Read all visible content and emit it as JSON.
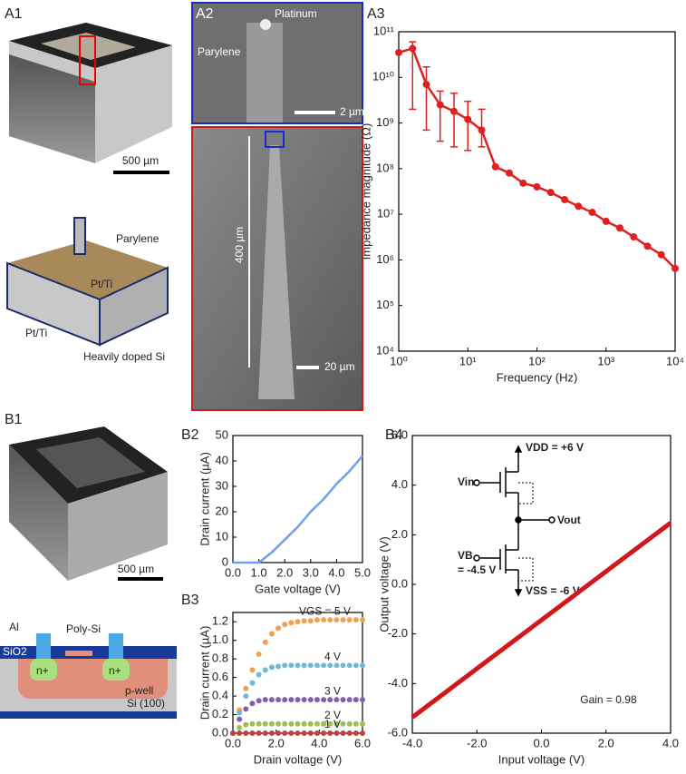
{
  "panels": {
    "a1": "A1",
    "a2": "A2",
    "a3": "A3",
    "b1": "B1",
    "b2": "B2",
    "b3": "B3",
    "b4": "B4"
  },
  "a1": {
    "scale_bar": "500 µm",
    "schematic": {
      "parylene": "Parylene",
      "pt_ti_1": "Pt/Ti",
      "pt_ti_2": "Pt/Ti",
      "si": "Heavily doped Si"
    }
  },
  "a2": {
    "platinum": "Platinum",
    "parylene": "Parylene",
    "scale_top": "2 µm",
    "length": "400 µm",
    "scale_bottom": "20 µm"
  },
  "b1": {
    "scale_bar": "500 µm",
    "schematic": {
      "al": "Al",
      "poly": "Poly-Si",
      "sio2": "SiO2",
      "n1": "n+",
      "n2": "n+",
      "pwell": "p-well",
      "si": "Si (100)"
    }
  },
  "chart_data": [
    {
      "type": "line",
      "markers": true,
      "log_x": true,
      "log_y": true,
      "x": [
        1,
        1.585,
        2.512,
        3.981,
        6.31,
        10,
        15.85,
        25.12,
        39.81,
        63.1,
        100,
        158.5,
        251.2,
        398.1,
        631,
        1000,
        1585,
        2512,
        3981,
        6310,
        10000
      ],
      "series": [
        {
          "color": "#e02020",
          "values": [
            35000000000.0,
            43000000000.0,
            7000000000.0,
            2500000000.0,
            1800000000.0,
            1200000000.0,
            700000000.0,
            110000000.0,
            80000000.0,
            48000000.0,
            40000000.0,
            30000000.0,
            21000000.0,
            15000000.0,
            11000000.0,
            7000000.0,
            5000000.0,
            3200000.0,
            2000000.0,
            1300000.0,
            650000.0
          ],
          "error_low": [
            null,
            2000000000.0,
            700000000.0,
            400000000.0,
            300000000.0,
            250000000.0,
            300000000.0,
            null,
            null,
            null,
            null,
            null,
            null,
            null,
            null,
            null,
            null,
            null,
            null,
            null,
            null
          ],
          "error_high": [
            null,
            60000000000.0,
            17000000000.0,
            5000000000.0,
            4500000000.0,
            3000000000.0,
            2000000000.0,
            null,
            null,
            null,
            null,
            null,
            null,
            null,
            null,
            null,
            null,
            null,
            null,
            null,
            null
          ]
        }
      ],
      "xlim": [
        1,
        10000
      ],
      "ylim": [
        10000,
        100000000000
      ],
      "xticks": [
        {
          "value": 1,
          "label": "10⁰"
        },
        {
          "value": 10,
          "label": "10¹"
        },
        {
          "value": 100,
          "label": "10²"
        },
        {
          "value": 1000,
          "label": "10³"
        },
        {
          "value": 10000,
          "label": "10⁴"
        }
      ],
      "yticks": [
        {
          "value": 10000,
          "label": "10⁴"
        },
        {
          "value": 100000,
          "label": "10⁵"
        },
        {
          "value": 1000000,
          "label": "10⁶"
        },
        {
          "value": 10000000,
          "label": "10⁷"
        },
        {
          "value": 100000000,
          "label": "10⁸"
        },
        {
          "value": 1000000000,
          "label": "10⁹"
        },
        {
          "value": 10000000000,
          "label": "10¹⁰"
        },
        {
          "value": 100000000000,
          "label": "10¹¹"
        }
      ],
      "xlabel": "Frequency (Hz)",
      "ylabel": "Impedance magnitude (Ω)"
    },
    {
      "type": "line",
      "x": [
        0,
        0.5,
        1,
        1.5,
        2,
        2.5,
        3,
        3.5,
        4,
        4.5,
        5
      ],
      "series": [
        {
          "color": "#6f9ff0",
          "values": [
            0,
            0,
            0,
            4,
            9,
            14,
            20,
            25,
            31,
            36,
            42
          ]
        }
      ],
      "xlim": [
        0,
        5
      ],
      "ylim": [
        0,
        50
      ],
      "xticks": [
        {
          "value": 0,
          "label": "0.0"
        },
        {
          "value": 1,
          "label": "1.0"
        },
        {
          "value": 2,
          "label": "2.0"
        },
        {
          "value": 3,
          "label": "3.0"
        },
        {
          "value": 4,
          "label": "4.0"
        },
        {
          "value": 5,
          "label": "5.0"
        }
      ],
      "yticks": [
        0,
        10,
        20,
        30,
        40,
        50
      ],
      "xlabel": "Gate voltage (V)",
      "ylabel": "Drain current (µA)"
    },
    {
      "type": "scatter",
      "x": [
        0,
        0.3,
        0.6,
        0.9,
        1.2,
        1.5,
        1.8,
        2.1,
        2.4,
        2.7,
        3,
        3.3,
        3.6,
        3.9,
        4.2,
        4.5,
        4.8,
        5.1,
        5.4,
        5.7,
        6
      ],
      "series": [
        {
          "name": "VGS = 5 V",
          "color": "#f0a050",
          "values": [
            0,
            0.25,
            0.48,
            0.68,
            0.85,
            0.98,
            1.07,
            1.13,
            1.17,
            1.19,
            1.2,
            1.21,
            1.21,
            1.22,
            1.22,
            1.22,
            1.22,
            1.22,
            1.22,
            1.22,
            1.22
          ]
        },
        {
          "name": "4 V",
          "color": "#6fb8d8",
          "values": [
            0,
            0.22,
            0.4,
            0.54,
            0.63,
            0.68,
            0.71,
            0.72,
            0.73,
            0.73,
            0.73,
            0.73,
            0.73,
            0.73,
            0.73,
            0.73,
            0.73,
            0.73,
            0.73,
            0.73,
            0.73
          ]
        },
        {
          "name": "3 V",
          "color": "#8060b0",
          "values": [
            0,
            0.15,
            0.26,
            0.32,
            0.35,
            0.36,
            0.36,
            0.36,
            0.36,
            0.36,
            0.36,
            0.36,
            0.36,
            0.36,
            0.36,
            0.36,
            0.36,
            0.36,
            0.36,
            0.36,
            0.36
          ]
        },
        {
          "name": "2 V",
          "color": "#9ac050",
          "values": [
            0,
            0.06,
            0.09,
            0.1,
            0.1,
            0.1,
            0.1,
            0.1,
            0.1,
            0.1,
            0.1,
            0.1,
            0.1,
            0.1,
            0.1,
            0.1,
            0.1,
            0.1,
            0.1,
            0.1,
            0.1
          ]
        },
        {
          "name": "1 V",
          "color": "#c04040",
          "values": [
            0,
            0,
            0,
            0,
            0,
            0,
            0,
            0,
            0,
            0,
            0,
            0,
            0,
            0,
            0,
            0,
            0,
            0,
            0,
            0,
            0
          ]
        }
      ],
      "xlim": [
        0,
        6
      ],
      "ylim": [
        0,
        1.3
      ],
      "xticks": [
        {
          "value": 0,
          "label": "0.0"
        },
        {
          "value": 2,
          "label": "2.0"
        },
        {
          "value": 4,
          "label": "4.0"
        },
        {
          "value": 6,
          "label": "6.0"
        }
      ],
      "yticks": [
        {
          "value": 0,
          "label": "0.0"
        },
        {
          "value": 0.2,
          "label": "0.2"
        },
        {
          "value": 0.4,
          "label": "0.4"
        },
        {
          "value": 0.6,
          "label": "0.6"
        },
        {
          "value": 0.8,
          "label": "0.8"
        },
        {
          "value": 1,
          "label": "1.0"
        },
        {
          "value": 1.2,
          "label": "1.2"
        }
      ],
      "xlabel": "Drain voltage (V)",
      "ylabel": "Drain current (µA)"
    },
    {
      "type": "line",
      "thick": true,
      "x": [
        -4,
        -3,
        -2,
        -1,
        0,
        1,
        2,
        3,
        4
      ],
      "series": [
        {
          "color": "#d01818",
          "values": [
            -5.36,
            -4.38,
            -3.4,
            -2.42,
            -1.44,
            -0.46,
            0.52,
            1.5,
            2.48
          ]
        }
      ],
      "xlim": [
        -4,
        4
      ],
      "ylim": [
        -6,
        6
      ],
      "xticks": [
        {
          "value": -4,
          "label": "-4.0"
        },
        {
          "value": -2,
          "label": "-2.0"
        },
        {
          "value": 0,
          "label": "0.0"
        },
        {
          "value": 2,
          "label": "2.0"
        },
        {
          "value": 4,
          "label": "4.0"
        }
      ],
      "yticks": [
        {
          "value": -6,
          "label": "-6.0"
        },
        {
          "value": -4,
          "label": "-4.0"
        },
        {
          "value": -2,
          "label": "-2.0"
        },
        {
          "value": 0,
          "label": "0.0"
        },
        {
          "value": 2,
          "label": "2.0"
        },
        {
          "value": 4,
          "label": "4.0"
        },
        {
          "value": 6,
          "label": "6.0"
        }
      ],
      "xlabel": "Input voltage (V)",
      "ylabel": "Output voltage (V)",
      "annotation": "Gain = 0.98",
      "circuit": {
        "vdd": "VDD = +6 V",
        "vin": "Vin",
        "vout": "Vout",
        "vb": "VB",
        "vb_value": "= -4.5 V",
        "vss": "VSS = -6 V"
      }
    }
  ]
}
